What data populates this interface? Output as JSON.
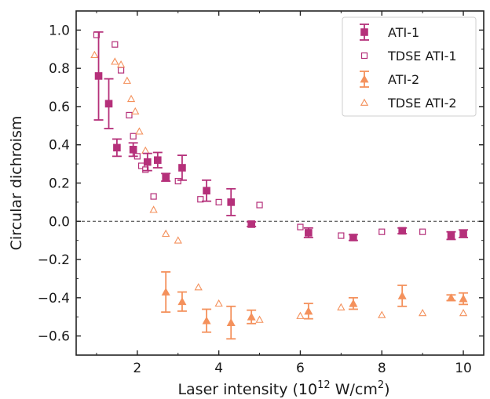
{
  "chart_data": {
    "type": "scatter",
    "title": "",
    "xlabel_main": "Laser intensity (10",
    "xlabel_sup": "12",
    "xlabel_unit": " W/cm",
    "xlabel_unit_sup": "2",
    "xlabel_close": ")",
    "ylabel": "Circular dichroism",
    "xlim": [
      0.5,
      10.5
    ],
    "ylim": [
      -0.7,
      1.1
    ],
    "x_ticks": [
      2,
      4,
      6,
      8,
      10
    ],
    "x_tick_labels": [
      "2",
      "4",
      "6",
      "8",
      "10"
    ],
    "y_ticks": [
      -0.6,
      -0.4,
      -0.2,
      0.0,
      0.2,
      0.4,
      0.6,
      0.8,
      1.0
    ],
    "y_tick_labels": [
      "−0.6",
      "−0.4",
      "−0.2",
      "0.0",
      "0.2",
      "0.4",
      "0.6",
      "0.8",
      "1.0"
    ],
    "reference_line": {
      "y": 0.0,
      "style": "dashed"
    },
    "grid": false,
    "legend_position": "top-right",
    "series": [
      {
        "name": "ATI-1",
        "marker": "filled-square",
        "color": "#b5307a",
        "x": [
          1.05,
          1.3,
          1.5,
          1.9,
          2.25,
          2.5,
          2.7,
          3.1,
          3.7,
          4.3,
          4.8,
          6.2,
          7.3,
          8.5,
          9.7,
          10.0
        ],
        "y": [
          0.76,
          0.615,
          0.385,
          0.375,
          0.31,
          0.32,
          0.23,
          0.28,
          0.16,
          0.1,
          -0.015,
          -0.06,
          -0.085,
          -0.05,
          -0.075,
          -0.065
        ],
        "err": [
          0.23,
          0.13,
          0.045,
          0.035,
          0.045,
          0.04,
          0.02,
          0.065,
          0.055,
          0.07,
          0.012,
          0.025,
          0.015,
          0.015,
          0.02,
          0.02
        ]
      },
      {
        "name": "TDSE ATI-1",
        "marker": "open-square",
        "color": "#b5307a",
        "x": [
          1.0,
          1.45,
          1.6,
          1.8,
          1.9,
          2.0,
          2.1,
          2.2,
          2.4,
          3.0,
          3.55,
          4.0,
          5.0,
          6.0,
          7.0,
          8.0,
          9.0
        ],
        "y": [
          0.975,
          0.925,
          0.79,
          0.555,
          0.445,
          0.34,
          0.29,
          0.27,
          0.13,
          0.21,
          0.115,
          0.1,
          0.085,
          -0.03,
          -0.075,
          -0.055,
          -0.055
        ]
      },
      {
        "name": "ATI-2",
        "marker": "filled-triangle",
        "color": "#f4915c",
        "x": [
          2.7,
          3.1,
          3.7,
          4.3,
          4.8,
          6.2,
          7.3,
          8.5,
          9.7,
          10.0
        ],
        "y": [
          -0.37,
          -0.42,
          -0.52,
          -0.53,
          -0.5,
          -0.47,
          -0.43,
          -0.39,
          -0.4,
          -0.405
        ],
        "err": [
          0.105,
          0.05,
          0.06,
          0.085,
          0.035,
          0.04,
          0.03,
          0.055,
          0.015,
          0.03
        ]
      },
      {
        "name": "TDSE ATI-2",
        "marker": "open-triangle",
        "color": "#f4915c",
        "x": [
          0.95,
          1.45,
          1.6,
          1.75,
          1.85,
          1.95,
          2.05,
          2.2,
          2.4,
          2.7,
          3.0,
          3.5,
          4.0,
          5.0,
          6.0,
          7.0,
          8.0,
          9.0,
          10.0
        ],
        "y": [
          0.87,
          0.835,
          0.82,
          0.735,
          0.64,
          0.575,
          0.47,
          0.37,
          0.06,
          -0.065,
          -0.1,
          -0.345,
          -0.43,
          -0.515,
          -0.495,
          -0.45,
          -0.49,
          -0.48,
          -0.48
        ]
      }
    ]
  }
}
